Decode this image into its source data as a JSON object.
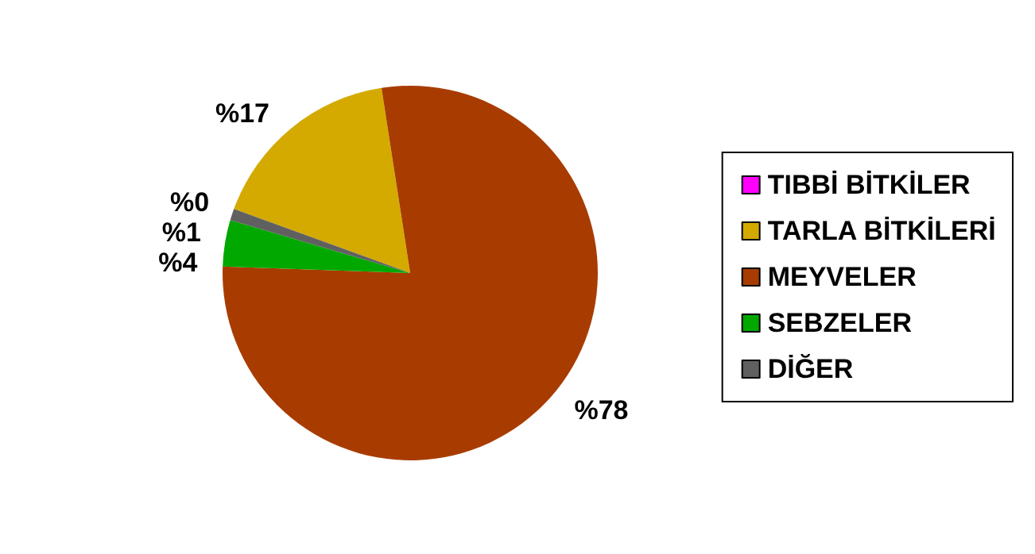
{
  "chart_data": {
    "type": "pie",
    "categories": [
      "TIBBİ BİTKİLER",
      "TARLA BİTKİLERİ",
      "MEYVELER",
      "SEBZELER",
      "DİĞER"
    ],
    "values": [
      0,
      17,
      78,
      4,
      1
    ],
    "colors": [
      "#ff00ff",
      "#d4aa00",
      "#a83c00",
      "#00a800",
      "#606060"
    ],
    "value_labels": [
      "%0",
      "%17",
      "%78",
      "%4",
      "%1"
    ],
    "legend": "right"
  }
}
